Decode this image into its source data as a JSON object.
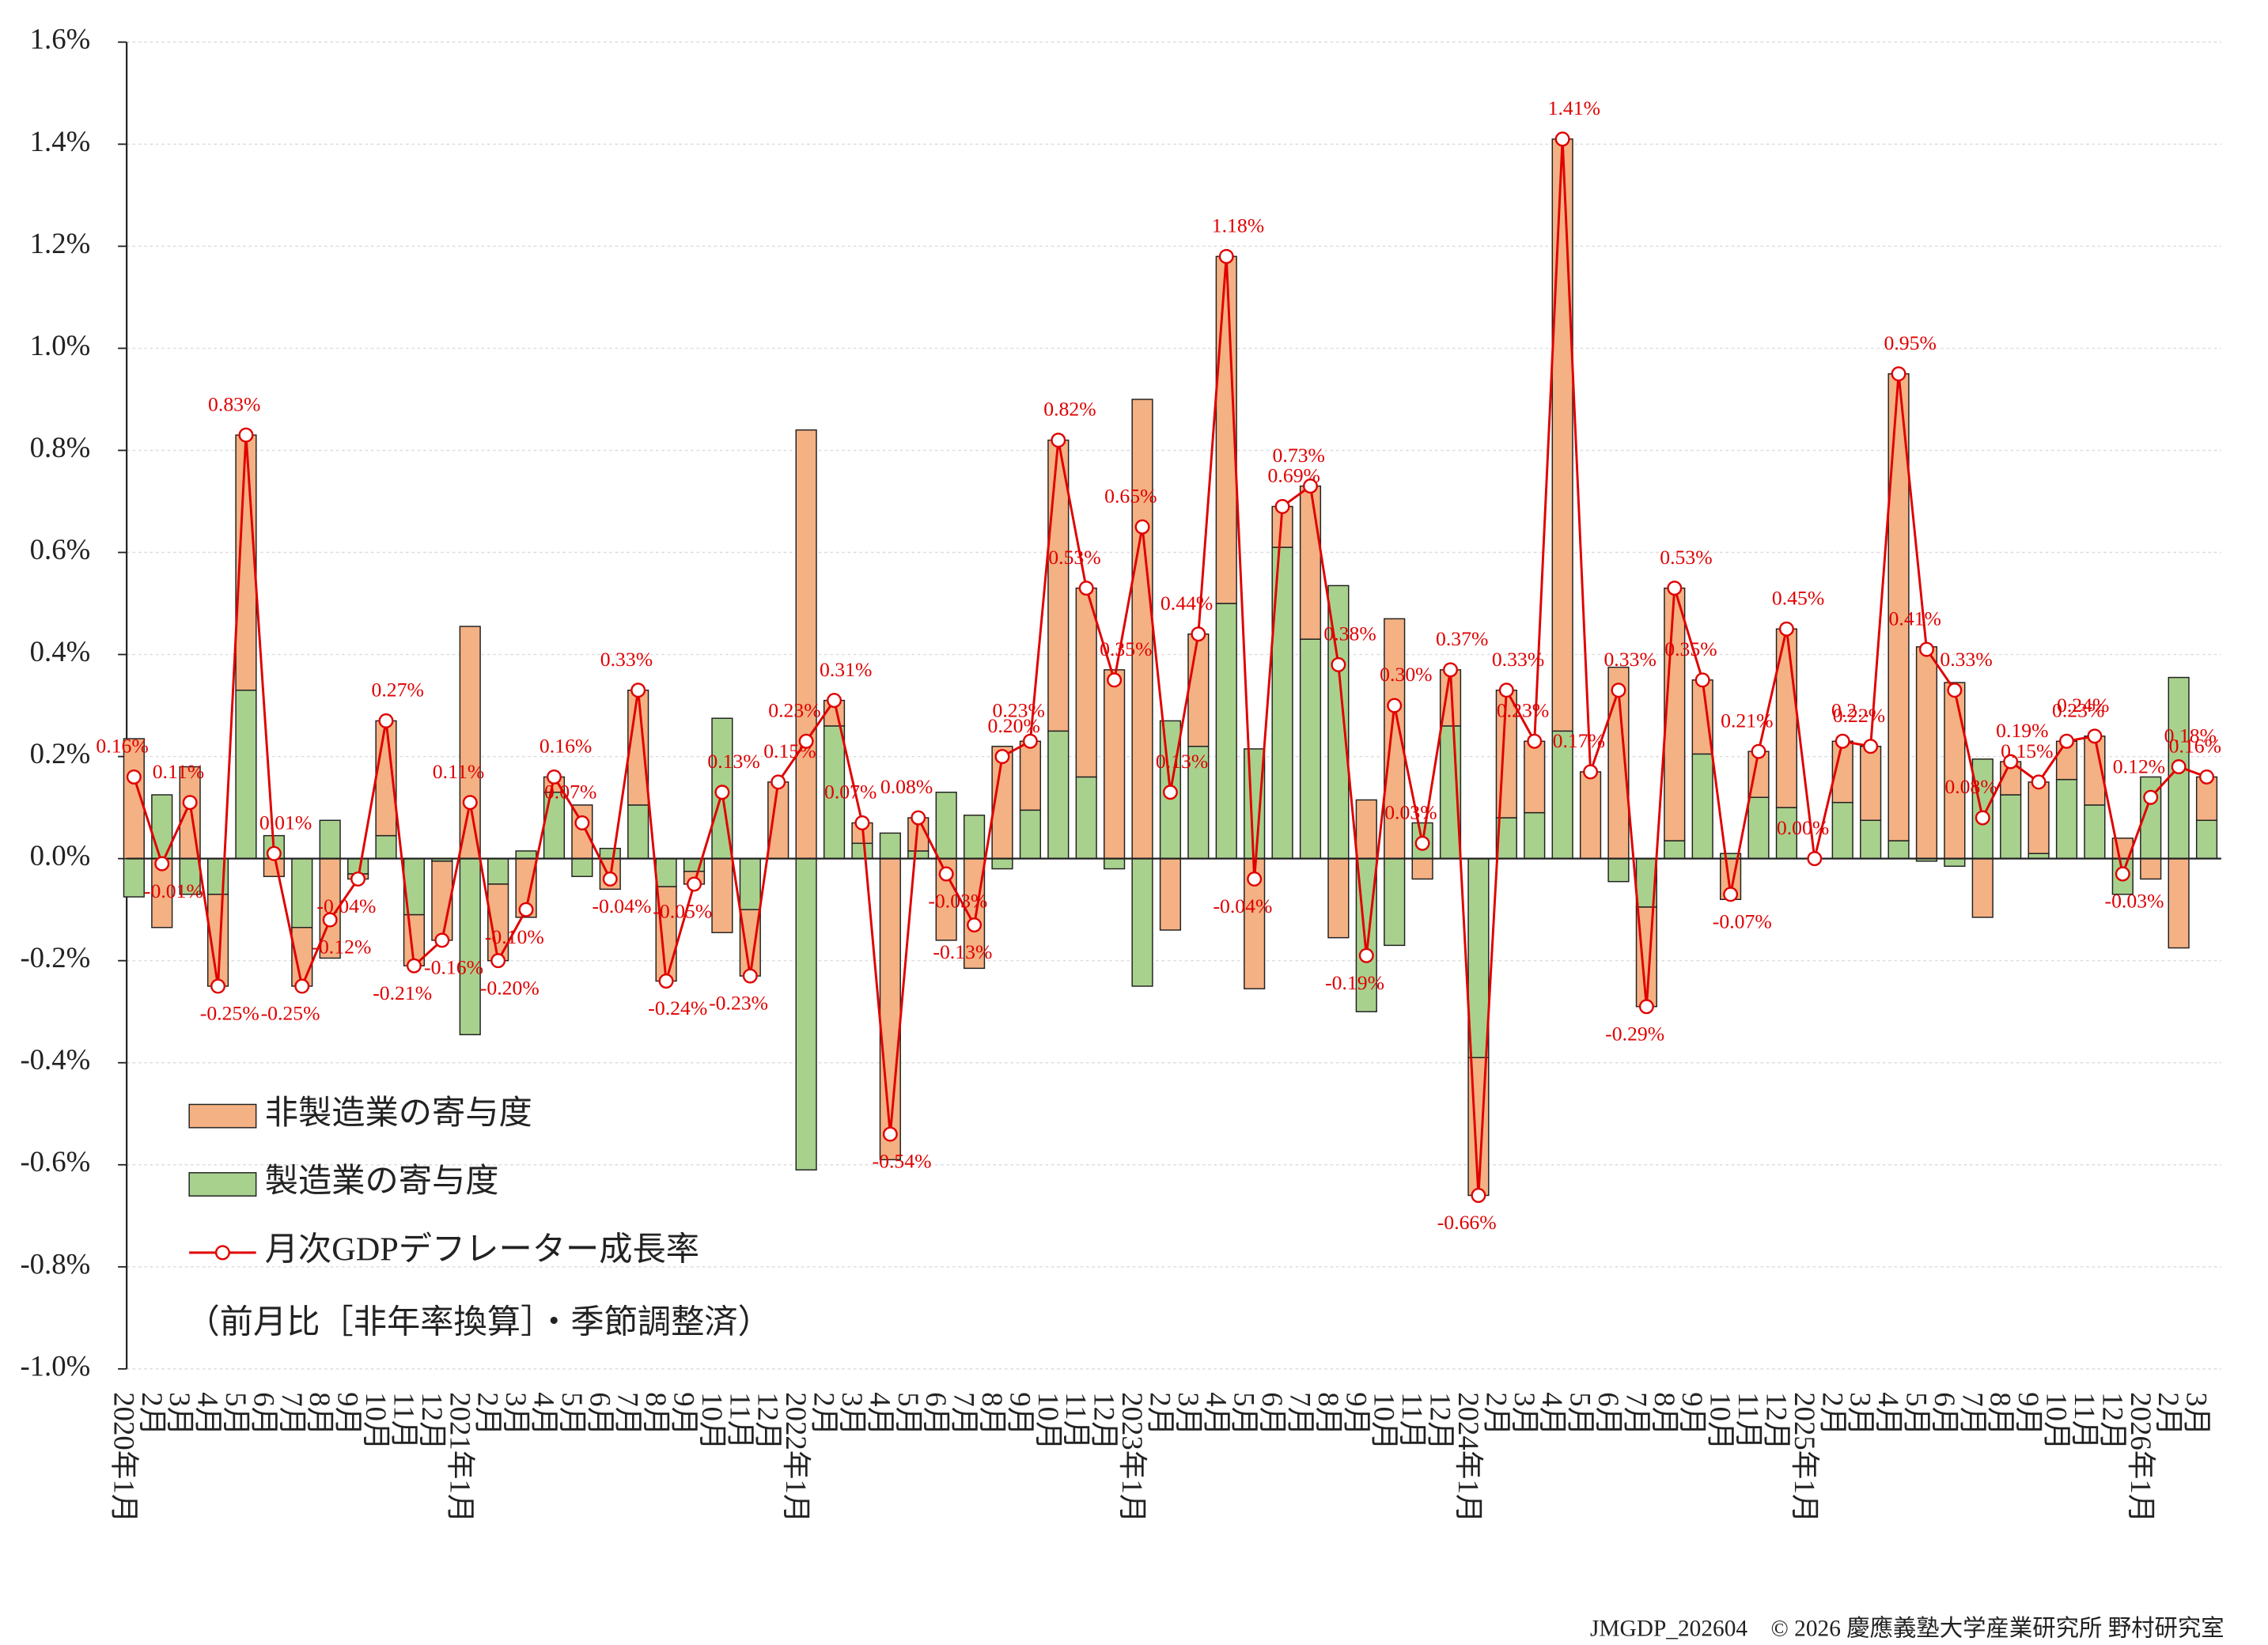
{
  "chart_data": {
    "type": "bar",
    "stacked": true,
    "grid": true,
    "legend": "lower-left",
    "note": "（前月比［非年率換算］・季節調整済）",
    "footer": "JMGDP_202604　© 2026 慶應義塾大学産業研究所 野村研究室",
    "categories": [
      "2020年1月",
      "2月",
      "3月",
      "4月",
      "5月",
      "6月",
      "7月",
      "8月",
      "9月",
      "10月",
      "11月",
      "12月",
      "2021年1月",
      "2月",
      "3月",
      "4月",
      "5月",
      "6月",
      "7月",
      "8月",
      "9月",
      "10月",
      "11月",
      "12月",
      "2022年1月",
      "2月",
      "3月",
      "4月",
      "5月",
      "6月",
      "7月",
      "8月",
      "9月",
      "10月",
      "11月",
      "12月",
      "2023年1月",
      "2月",
      "3月",
      "4月",
      "5月",
      "6月",
      "7月",
      "8月",
      "9月",
      "10月",
      "11月",
      "12月",
      "2024年1月",
      "2月",
      "3月",
      "4月",
      "5月",
      "6月",
      "7月",
      "8月",
      "9月",
      "10月",
      "11月",
      "12月",
      "2025年1月",
      "2月",
      "3月",
      "4月",
      "5月",
      "6月",
      "7月",
      "8月",
      "9月",
      "10月",
      "11月",
      "12月",
      "2026年1月",
      "2月",
      "3月"
    ],
    "series": [
      {
        "name": "非製造業の寄与度",
        "type": "bar",
        "color": "#f4b183",
        "values": [
          0.235,
          -0.135,
          0.18,
          -0.18,
          0.5,
          -0.035,
          -0.115,
          -0.195,
          -0.01,
          0.225,
          -0.1,
          -0.155,
          0.455,
          -0.15,
          -0.115,
          0.03,
          0.105,
          -0.06,
          0.225,
          -0.185,
          -0.025,
          -0.145,
          -0.13,
          0.15,
          0.84,
          0.05,
          0.04,
          -0.59,
          0.065,
          -0.16,
          -0.215,
          0.22,
          0.135,
          0.57,
          0.37,
          0.37,
          0.9,
          -0.14,
          0.22,
          0.68,
          -0.255,
          0.08,
          0.3,
          -0.155,
          0.115,
          0.47,
          -0.04,
          0.11,
          -0.27,
          0.25,
          0.14,
          1.16,
          0.17,
          0.375,
          -0.195,
          0.495,
          0.145,
          -0.08,
          0.09,
          0.35,
          0,
          0.12,
          0.145,
          0.915,
          0.415,
          0.345,
          -0.115,
          0.065,
          0.14,
          0.075,
          0.135,
          0.04,
          -0.04,
          -0.175,
          0.085
        ]
      },
      {
        "name": "製造業の寄与度",
        "type": "bar",
        "color": "#a9d18e",
        "values": [
          -0.075,
          0.125,
          -0.07,
          -0.07,
          0.33,
          0.045,
          -0.135,
          0.075,
          -0.03,
          0.045,
          -0.11,
          -0.005,
          -0.345,
          -0.05,
          0.015,
          0.13,
          -0.035,
          0.02,
          0.105,
          -0.055,
          -0.025,
          0.275,
          -0.1,
          0,
          -0.61,
          0.26,
          0.03,
          0.05,
          0.015,
          0.13,
          0.085,
          -0.02,
          0.095,
          0.25,
          0.16,
          -0.02,
          -0.25,
          0.27,
          0.22,
          0.5,
          0.215,
          0.61,
          0.43,
          0.535,
          -0.3,
          -0.17,
          0.07,
          0.26,
          -0.39,
          0.08,
          0.09,
          0.25,
          0,
          -0.045,
          -0.095,
          0.035,
          0.205,
          0.01,
          0.12,
          0.1,
          0,
          0.11,
          0.075,
          0.035,
          -0.005,
          -0.015,
          0.195,
          0.125,
          0.01,
          0.155,
          0.105,
          -0.07,
          0.16,
          0.355,
          0.075
        ]
      },
      {
        "name": "月次GDPデフレーター成長率",
        "type": "line",
        "color": "#e00000",
        "values": [
          0.16,
          -0.01,
          0.11,
          -0.25,
          0.83,
          0.01,
          -0.25,
          -0.12,
          -0.04,
          0.27,
          -0.21,
          -0.16,
          0.11,
          -0.2,
          -0.1,
          0.16,
          0.07,
          -0.04,
          0.33,
          -0.24,
          -0.05,
          0.13,
          -0.23,
          0.15,
          0.23,
          0.31,
          0.07,
          -0.54,
          0.08,
          -0.03,
          -0.13,
          0.2,
          0.23,
          0.82,
          0.53,
          0.35,
          0.65,
          0.13,
          0.44,
          1.18,
          -0.04,
          0.69,
          0.73,
          0.38,
          -0.19,
          0.3,
          0.03,
          0.37,
          -0.66,
          0.33,
          0.23,
          1.41,
          0.17,
          0.33,
          -0.29,
          0.53,
          0.35,
          -0.07,
          0.21,
          0.45,
          0.0,
          0.23,
          0.22,
          0.95,
          0.41,
          0.33,
          0.08,
          0.19,
          0.15,
          0.23,
          0.24,
          -0.03,
          0.12,
          0.18,
          0.16
        ],
        "value_labels": [
          "0.16%",
          "-0.01%",
          "0.11%",
          "-0.25%",
          "0.83%",
          "0.01%",
          "-0.25%",
          "-0.12%",
          "-0.04%",
          "0.27%",
          "-0.21%",
          "-0.16%",
          "0.11%",
          "-0.20%",
          "-0.10%",
          "0.16%",
          "0.07%",
          "-0.04%",
          "0.33%",
          "-0.24%",
          "-0.05%",
          "0.13%",
          "-0.23%",
          "0.15%",
          "0.23%",
          "0.31%",
          "0.07%",
          "-0.54%",
          "0.08%",
          "-0.03%",
          "-0.13%",
          "0.20%",
          "0.23%",
          "0.82%",
          "0.53%",
          "0.35%",
          "0.65%",
          "0.13%",
          "0.44%",
          "1.18%",
          "-0.04%",
          "0.69%",
          "0.73%",
          "0.38%",
          "-0.19%",
          "0.30%",
          "0.03%",
          "0.37%",
          "-0.66%",
          "0.33%",
          "0.23%",
          "1.41%",
          "0.17%",
          "0.33%",
          "-0.29%",
          "0.53%",
          "0.35%",
          "-0.07%",
          "0.21%",
          "0.45%",
          "0.00%",
          "0.2…",
          "0.22%",
          "0.95%",
          "0.41%",
          "0.33%",
          "0.08%",
          "0.19%",
          "0.15%",
          "0.23%",
          "0.24%",
          "-0.03%",
          "0.12%",
          "0.18%",
          "0.16%"
        ]
      }
    ],
    "ylim": [
      -1.0,
      1.6
    ],
    "yticks": [
      {
        "value": -1.0,
        "label": "-1.0%"
      },
      {
        "value": -0.8,
        "label": "-0.8%"
      },
      {
        "value": -0.6,
        "label": "-0.6%"
      },
      {
        "value": -0.4,
        "label": "-0.4%"
      },
      {
        "value": -0.2,
        "label": "-0.2%"
      },
      {
        "value": 0,
        "label": "0.0%"
      },
      {
        "value": 0.2,
        "label": "0.2%"
      },
      {
        "value": 0.4,
        "label": "0.4%"
      },
      {
        "value": 0.6,
        "label": "0.6%"
      },
      {
        "value": 0.8,
        "label": "0.8%"
      },
      {
        "value": 1.0,
        "label": "1.0%"
      },
      {
        "value": 1.2,
        "label": "1.2%"
      },
      {
        "value": 1.4,
        "label": "1.4%"
      },
      {
        "value": 1.6,
        "label": "1.6%"
      }
    ]
  }
}
